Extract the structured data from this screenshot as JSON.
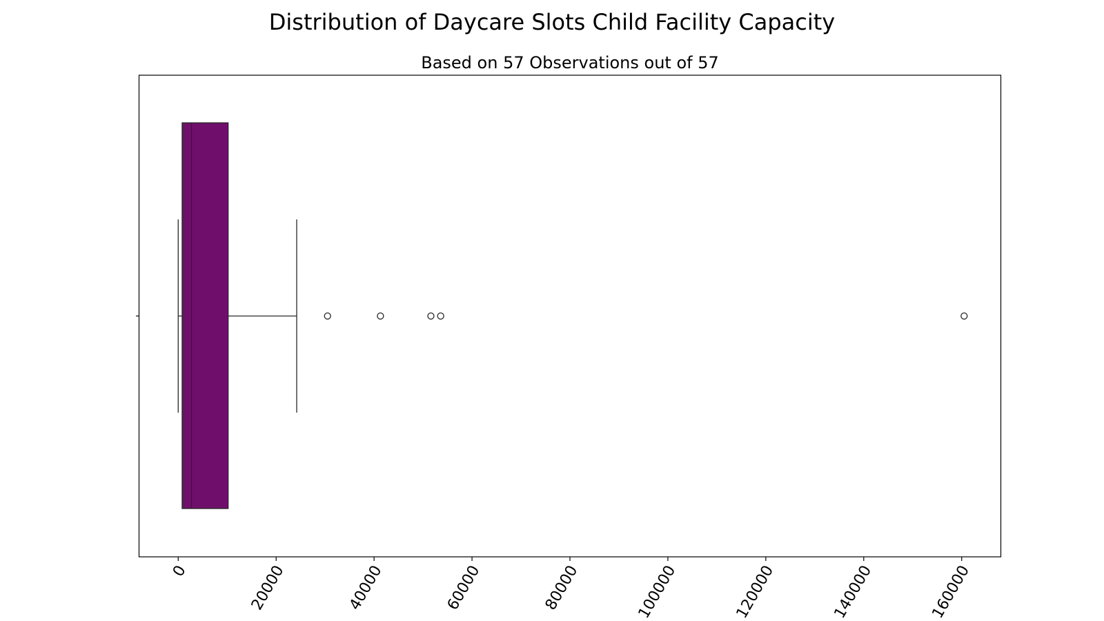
{
  "chart_data": {
    "type": "box",
    "orientation": "horizontal",
    "title": "Distribution of Daycare Slots Child Facility Capacity",
    "subtitle": "Based on 57 Observations out of 57",
    "xlabel": "",
    "ylabel": "",
    "xlim": [
      -8000,
      168000
    ],
    "xticks": [
      0,
      20000,
      40000,
      60000,
      80000,
      100000,
      120000,
      140000,
      160000
    ],
    "xtick_labels": [
      "0",
      "20000",
      "40000",
      "60000",
      "80000",
      "100000",
      "120000",
      "140000",
      "160000"
    ],
    "tick_rotation_deg": 60,
    "grid": false,
    "box": {
      "whisker_low": 0,
      "q1": 800,
      "median": 2700,
      "q3": 10200,
      "whisker_high": 24200
    },
    "outliers": [
      30500,
      41300,
      51600,
      53600,
      160500
    ],
    "colors": {
      "box_fill": "#6f0f6b",
      "lines": "#262626"
    }
  }
}
